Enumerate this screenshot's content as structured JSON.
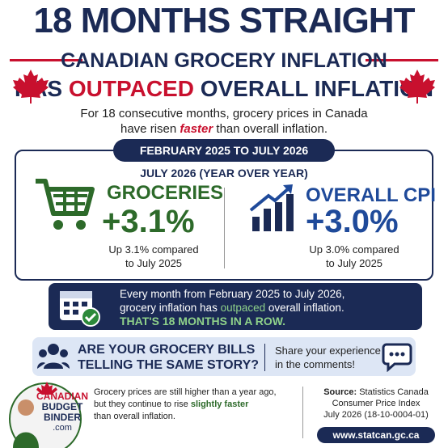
{
  "header": {
    "title": "18 MONTHS STRAIGHT",
    "subtitle_line1": "CANADIAN GROCERY INFLATION",
    "subtitle_line2": [
      "HAS ",
      "OUTPACED",
      " OVERALL INFLATION"
    ]
  },
  "intro": {
    "line1": "For 18 consecutive months, grocery prices in Canada",
    "line2": [
      "have risen ",
      "faster",
      " than overall inflation."
    ]
  },
  "period": "FEBRUARY 2025 TO JULY 2026",
  "comparison": {
    "heading": "JULY 2026 (YEAR OVER YEAR)",
    "groceries": {
      "label": "GROCERIES",
      "value": "+3.1%",
      "note_line1": "Up 3.1% compared",
      "note_line2": "to July 2025"
    },
    "cpi": {
      "label": "OVERALL CPI",
      "value": "+3.0%",
      "note_line1": "Up 3.0% compared",
      "note_line2": "to July 2025"
    }
  },
  "streak": {
    "line1": "Every month from February 2025 to July 2026,",
    "line2": [
      "grocery inflation has ",
      "outpaced",
      " overall inflation."
    ],
    "highlight": "THAT'S 18 MONTHS IN A ROW."
  },
  "question": {
    "line1": "ARE YOUR GROCERY BILLS",
    "line2": "TELLING THE SAME STORY?",
    "cta_line1": "Share your experience",
    "cta_line2": "in the comments!"
  },
  "footer": {
    "brand": [
      "CANADIAN",
      "BUDGET",
      "BINDER",
      ".com"
    ],
    "text_line1": "Grocery prices are still higher than a year ago,",
    "text_line2": [
      "but they continue to rise ",
      "slightly faster"
    ],
    "text_line3": "than overall inflation.",
    "source_label": "Source:",
    "source_line1": " Statistics Canada",
    "source_line2": "Consumer Price Index",
    "source_line3": "July 2026 (18-10-0004-01)",
    "url": "www.statcan.gc.ca"
  }
}
